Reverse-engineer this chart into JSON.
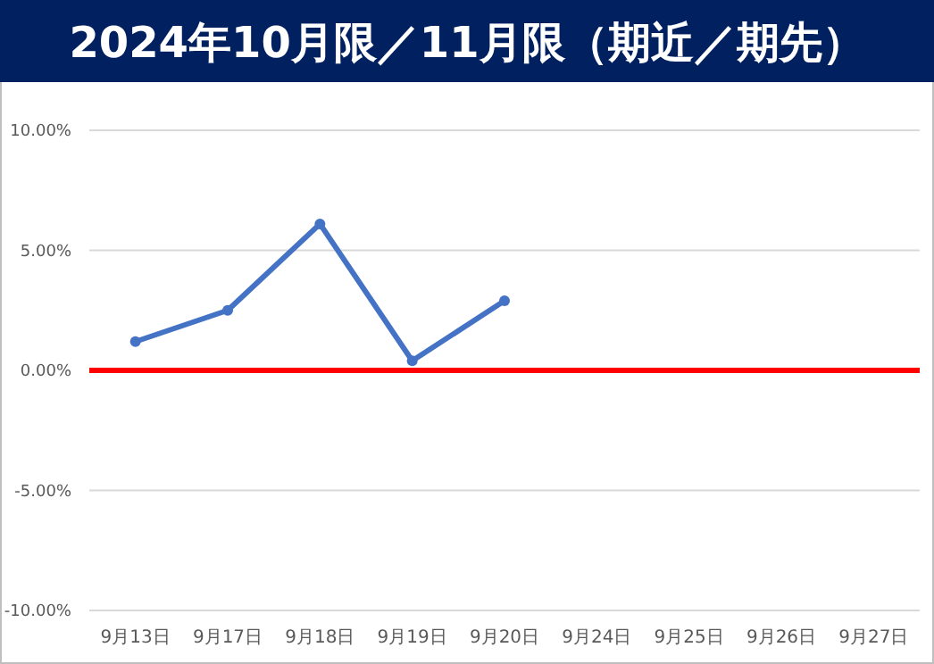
{
  "chart_data": {
    "type": "line",
    "title": "2024年10月限／11月限（期近／期先）",
    "categories": [
      "9月13日",
      "9月17日",
      "9月18日",
      "9月19日",
      "9月20日",
      "9月24日",
      "9月25日",
      "9月26日",
      "9月27日"
    ],
    "series": [
      {
        "color": "#4472c4",
        "values": [
          1.2,
          2.5,
          6.1,
          0.4,
          2.9,
          null,
          null,
          null,
          null
        ]
      }
    ],
    "ylim": [
      -10,
      10
    ],
    "yticks": [
      {
        "value": -10,
        "label": "-10.00%"
      },
      {
        "value": -5,
        "label": "-5.00%"
      },
      {
        "value": 0,
        "label": "0.00%"
      },
      {
        "value": 5,
        "label": "5.00%"
      },
      {
        "value": 10,
        "label": "10.00%"
      }
    ],
    "grid": "y",
    "marker": "circle",
    "line_style": "solid",
    "ref_lines": [
      {
        "axis": "y",
        "value": 0,
        "color": "#ff0000"
      }
    ]
  }
}
